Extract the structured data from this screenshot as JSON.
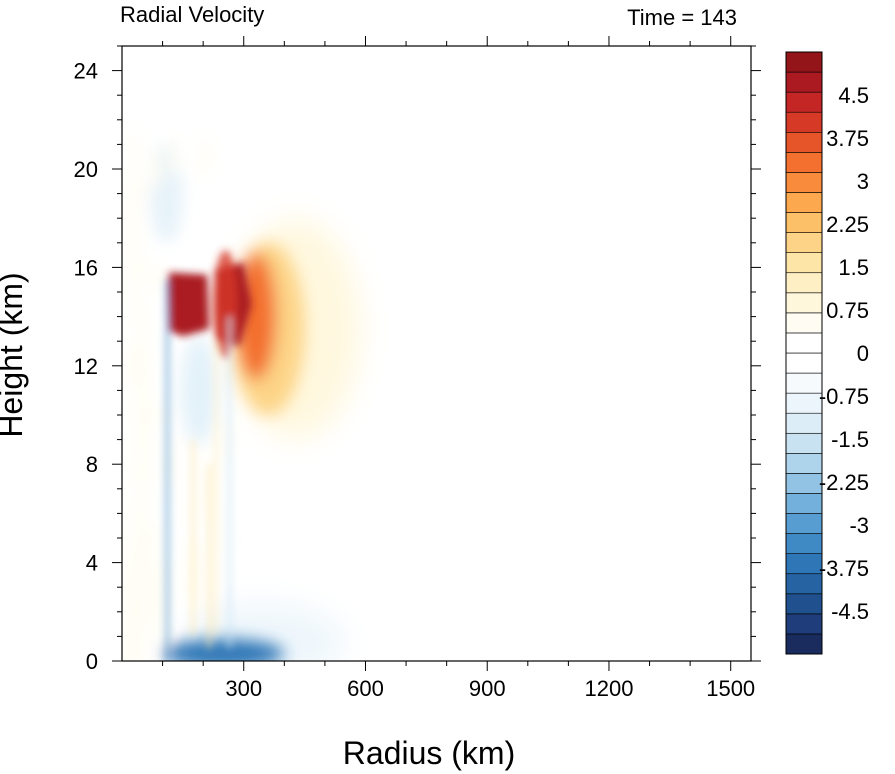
{
  "chart_data": {
    "type": "heatmap",
    "title_left": "Radial Velocity",
    "title_right": "Time = 143",
    "xlabel": "Radius (km)",
    "ylabel": "Height (km)",
    "xlim": [
      0,
      1550
    ],
    "ylim": [
      0,
      25
    ],
    "xticks": [
      "300",
      "600",
      "900",
      "1200",
      "1500"
    ],
    "xtick_values": [
      300,
      600,
      900,
      1200,
      1500
    ],
    "yticks": [
      "0",
      "4",
      "8",
      "12",
      "16",
      "20",
      "24"
    ],
    "ytick_values": [
      0,
      4,
      8,
      12,
      16,
      20,
      24
    ],
    "colorbar": {
      "min": -5.25,
      "max": 5.25,
      "step": 0.375,
      "labels": [
        "4.5",
        "3.75",
        "3",
        "2.25",
        "1.5",
        "0.75",
        "0",
        "-0.75",
        "-1.5",
        "-2.25",
        "-3",
        "-3.75",
        "-4.5"
      ],
      "label_values": [
        4.5,
        3.75,
        3,
        2.25,
        1.5,
        0.75,
        0,
        -0.75,
        -1.5,
        -2.25,
        -3,
        -3.75,
        -4.5
      ],
      "colors": [
        "#1a2b5e",
        "#1f3d7a",
        "#21508f",
        "#2563a3",
        "#2f76b6",
        "#3f89c5",
        "#579dd2",
        "#74b0dc",
        "#92c3e5",
        "#aed4ec",
        "#c8e2f2",
        "#dcedf7",
        "#ebf5fb",
        "#f6fafd",
        "#ffffff",
        "#ffffff",
        "#fffdf3",
        "#fff7dc",
        "#feefc4",
        "#fde4a7",
        "#fdd487",
        "#fcc068",
        "#fba84f",
        "#f88c3c",
        "#f3702f",
        "#e65429",
        "#d63a27",
        "#c42525",
        "#aa1a20",
        "#931519"
      ]
    },
    "features": [
      {
        "name": "upper-outflow-core-1",
        "r": [
          115,
          210
        ],
        "z": [
          13.3,
          15.8
        ],
        "value": 5.5
      },
      {
        "name": "upper-outflow-core-2",
        "r": [
          230,
          300
        ],
        "z": [
          13.0,
          15.8
        ],
        "value": 5.5
      },
      {
        "name": "outflow-plume",
        "r": [
          300,
          780
        ],
        "z": [
          6,
          19
        ],
        "value": 1.5
      },
      {
        "name": "low-level-inflow",
        "r": [
          115,
          450
        ],
        "z": [
          0,
          1.2
        ],
        "value": -3.5
      },
      {
        "name": "inner-alternating-bands",
        "r": [
          0,
          300
        ],
        "z": [
          0,
          21.5
        ],
        "value": 2.5
      }
    ]
  }
}
